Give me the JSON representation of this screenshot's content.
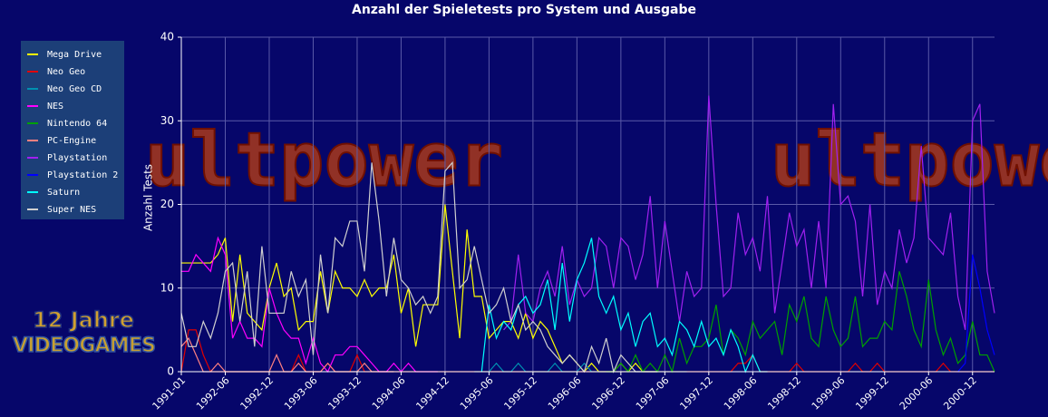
{
  "chart_data": {
    "type": "line",
    "title": "Anzahl der Spieletests pro System und Ausgabe",
    "y_label": "Anzahl Tests",
    "watermark": "ultpower",
    "logo": {
      "line1": "12 Jahre",
      "line2": "VIDEOGAMES"
    },
    "ylim": [
      0,
      40
    ],
    "yticks": [
      0,
      10,
      20,
      30,
      40
    ],
    "grid": true,
    "legend": "top-left",
    "categories": [
      "1991-01",
      null,
      null,
      null,
      null,
      null,
      "1992-06",
      null,
      null,
      null,
      null,
      null,
      "1992-12",
      null,
      null,
      null,
      null,
      null,
      "1993-06",
      null,
      null,
      null,
      null,
      null,
      "1993-12",
      null,
      null,
      null,
      null,
      null,
      "1994-06",
      null,
      null,
      null,
      null,
      null,
      "1994-12",
      null,
      null,
      null,
      null,
      null,
      "1995-06",
      null,
      null,
      null,
      null,
      null,
      "1995-12",
      null,
      null,
      null,
      null,
      null,
      "1996-06",
      null,
      null,
      null,
      null,
      null,
      "1996-12",
      null,
      null,
      null,
      null,
      null,
      "1997-06",
      null,
      null,
      null,
      null,
      null,
      "1997-12",
      null,
      null,
      null,
      null,
      null,
      "1998-06",
      null,
      null,
      null,
      null,
      null,
      "1998-12",
      null,
      null,
      null,
      null,
      null,
      "1999-06",
      null,
      null,
      null,
      null,
      null,
      "1999-12",
      null,
      null,
      null,
      null,
      null,
      "2000-06",
      null,
      null,
      null,
      null,
      null,
      "2000-12",
      null,
      null,
      null
    ],
    "series": [
      {
        "name": "Mega Drive",
        "color": "#ffff00",
        "values": [
          13,
          13,
          13,
          13,
          13,
          14,
          16,
          6,
          14,
          7,
          6,
          5,
          10,
          13,
          9,
          10,
          5,
          6,
          6,
          12,
          7,
          12,
          10,
          10,
          9,
          11,
          9,
          10,
          10,
          14,
          7,
          10,
          3,
          8,
          8,
          8,
          20,
          12,
          4,
          17,
          9,
          9,
          4,
          5,
          6,
          6,
          4,
          7,
          4,
          6,
          5,
          3,
          1,
          2,
          1,
          0,
          1,
          0,
          0,
          0,
          1,
          0,
          1,
          0,
          0,
          0,
          null,
          null,
          null,
          null,
          null,
          null,
          null,
          null,
          null,
          null,
          null,
          null,
          null,
          null,
          null,
          null,
          null,
          null,
          null,
          null,
          null,
          null,
          null,
          null,
          null,
          null,
          null,
          null,
          null,
          null,
          null,
          null,
          null,
          null,
          null,
          null,
          null,
          null,
          null,
          null,
          null,
          null,
          null,
          null,
          null,
          null
        ]
      },
      {
        "name": "Neo Geo",
        "color": "#e00000",
        "values": [
          0,
          5,
          5,
          2,
          0,
          0,
          0,
          0,
          0,
          0,
          0,
          0,
          0,
          0,
          0,
          0,
          2,
          0,
          0,
          0,
          1,
          0,
          0,
          0,
          2,
          0,
          0,
          0,
          0,
          0,
          0,
          0,
          0,
          0,
          0,
          0,
          0,
          0,
          0,
          0,
          0,
          0,
          0,
          0,
          0,
          0,
          0,
          0,
          0,
          0,
          0,
          0,
          0,
          0,
          0,
          0,
          0,
          0,
          0,
          0,
          0,
          0,
          0,
          0,
          0,
          0,
          0,
          0,
          0,
          0,
          0,
          0,
          0,
          0,
          0,
          0,
          1,
          1,
          2,
          0,
          0,
          0,
          0,
          0,
          1,
          0,
          0,
          0,
          0,
          0,
          0,
          0,
          1,
          0,
          0,
          1,
          0,
          0,
          0,
          0,
          0,
          0,
          0,
          0,
          1,
          0,
          0,
          0,
          0,
          0,
          0,
          0
        ]
      },
      {
        "name": "Neo Geo CD",
        "color": "#0090b0",
        "values": [
          null,
          null,
          null,
          null,
          null,
          null,
          null,
          null,
          null,
          null,
          null,
          null,
          null,
          null,
          null,
          null,
          null,
          null,
          null,
          null,
          null,
          null,
          null,
          null,
          null,
          null,
          null,
          null,
          null,
          null,
          null,
          null,
          null,
          null,
          null,
          null,
          null,
          null,
          null,
          null,
          0,
          0,
          0,
          1,
          0,
          0,
          1,
          0,
          0,
          0,
          0,
          1,
          0,
          0,
          0,
          1,
          0,
          0,
          0,
          0,
          0,
          0,
          0,
          0,
          0,
          0,
          0,
          0,
          0,
          0,
          null,
          null,
          null,
          null,
          null,
          null,
          null,
          null,
          null,
          null,
          null,
          null,
          null,
          null,
          null,
          null,
          null,
          null,
          null,
          null,
          null,
          null,
          null,
          null,
          null,
          null,
          null,
          null,
          null,
          null,
          null,
          null,
          null,
          null,
          null,
          null,
          null,
          null,
          null,
          null,
          null,
          null
        ]
      },
      {
        "name": "NES",
        "color": "#ff00ff",
        "values": [
          12,
          12,
          14,
          13,
          12,
          16,
          14,
          4,
          6,
          4,
          4,
          3,
          10,
          7,
          5,
          4,
          4,
          1,
          4,
          1,
          0,
          2,
          2,
          3,
          3,
          2,
          1,
          0,
          0,
          1,
          0,
          1,
          0,
          0,
          0,
          0,
          null,
          null,
          null,
          null,
          null,
          null,
          null,
          null,
          null,
          null,
          null,
          null,
          null,
          null,
          null,
          null,
          null,
          null,
          null,
          null,
          null,
          null,
          null,
          null,
          null,
          null,
          null,
          null,
          null,
          null,
          null,
          null,
          null,
          null,
          null,
          null,
          null,
          null,
          null,
          null,
          null,
          null,
          null,
          null,
          null,
          null,
          null,
          null,
          null,
          null,
          null,
          null,
          null,
          null,
          null,
          null,
          null,
          null,
          null,
          null,
          null,
          null,
          null,
          null,
          null,
          null,
          null,
          null,
          null,
          null,
          null,
          null,
          null,
          null,
          null,
          null
        ]
      },
      {
        "name": "Nintendo 64",
        "color": "#00a000",
        "values": [
          null,
          null,
          null,
          null,
          null,
          null,
          null,
          null,
          null,
          null,
          null,
          null,
          null,
          null,
          null,
          null,
          null,
          null,
          null,
          null,
          null,
          null,
          null,
          null,
          null,
          null,
          null,
          null,
          null,
          null,
          null,
          null,
          null,
          null,
          null,
          null,
          null,
          null,
          null,
          null,
          null,
          null,
          null,
          null,
          null,
          null,
          null,
          null,
          null,
          null,
          null,
          null,
          null,
          null,
          null,
          null,
          null,
          null,
          0,
          0,
          1,
          0,
          2,
          0,
          1,
          0,
          2,
          0,
          4,
          1,
          3,
          3,
          4,
          8,
          2,
          5,
          4,
          2,
          6,
          4,
          5,
          6,
          2,
          8,
          6,
          9,
          4,
          3,
          9,
          5,
          3,
          4,
          9,
          3,
          4,
          4,
          6,
          5,
          12,
          9,
          5,
          3,
          11,
          5,
          2,
          4,
          1,
          2,
          6,
          2,
          2,
          0
        ]
      },
      {
        "name": "PC-Engine",
        "color": "#ff8080",
        "values": [
          3,
          4,
          2,
          0,
          0,
          1,
          0,
          0,
          0,
          0,
          0,
          0,
          0,
          2,
          0,
          0,
          1,
          0,
          0,
          0,
          1,
          0,
          0,
          0,
          0,
          1,
          0,
          0,
          0,
          0,
          null,
          null,
          null,
          null,
          null,
          null,
          null,
          null,
          null,
          null,
          null,
          null,
          null,
          null,
          null,
          null,
          null,
          null,
          null,
          null,
          null,
          null,
          null,
          null,
          null,
          null,
          null,
          null,
          null,
          null,
          null,
          null,
          null,
          null,
          null,
          null,
          null,
          null,
          null,
          null,
          null,
          null,
          null,
          null,
          null,
          null,
          null,
          null,
          null,
          null,
          null,
          null,
          null,
          null,
          null,
          null,
          null,
          null,
          null,
          null,
          null,
          null,
          null,
          null,
          null,
          null,
          null,
          null,
          null,
          null,
          null,
          null,
          null,
          null,
          null,
          null,
          null,
          null,
          null,
          null,
          null,
          null
        ]
      },
      {
        "name": "Playstation",
        "color": "#a020f0",
        "values": [
          null,
          null,
          null,
          null,
          null,
          null,
          null,
          null,
          null,
          null,
          null,
          null,
          null,
          null,
          null,
          null,
          null,
          null,
          null,
          null,
          null,
          null,
          null,
          null,
          null,
          null,
          null,
          null,
          null,
          null,
          null,
          null,
          null,
          null,
          null,
          null,
          null,
          null,
          null,
          null,
          null,
          null,
          null,
          null,
          5,
          6,
          14,
          7,
          6,
          10,
          12,
          9,
          15,
          8,
          11,
          9,
          10,
          16,
          15,
          10,
          16,
          15,
          11,
          14,
          21,
          10,
          18,
          12,
          6,
          12,
          9,
          10,
          33,
          20,
          9,
          10,
          19,
          14,
          16,
          12,
          21,
          7,
          13,
          19,
          15,
          17,
          10,
          18,
          10,
          32,
          20,
          21,
          18,
          9,
          20,
          8,
          12,
          10,
          17,
          13,
          16,
          27,
          16,
          15,
          14,
          19,
          9,
          5,
          30,
          32,
          12,
          7
        ]
      },
      {
        "name": "Playstation 2",
        "color": "#0000ff",
        "values": [
          null,
          null,
          null,
          null,
          null,
          null,
          null,
          null,
          null,
          null,
          null,
          null,
          null,
          null,
          null,
          null,
          null,
          null,
          null,
          null,
          null,
          null,
          null,
          null,
          null,
          null,
          null,
          null,
          null,
          null,
          null,
          null,
          null,
          null,
          null,
          null,
          null,
          null,
          null,
          null,
          null,
          null,
          null,
          null,
          null,
          null,
          null,
          null,
          null,
          null,
          null,
          null,
          null,
          null,
          null,
          null,
          null,
          null,
          null,
          null,
          null,
          null,
          null,
          null,
          null,
          null,
          null,
          null,
          null,
          null,
          null,
          null,
          null,
          null,
          null,
          null,
          null,
          null,
          null,
          null,
          null,
          null,
          null,
          null,
          null,
          null,
          null,
          null,
          null,
          null,
          null,
          null,
          null,
          null,
          null,
          null,
          null,
          null,
          null,
          null,
          null,
          null,
          null,
          null,
          null,
          null,
          0,
          1,
          14,
          10,
          5,
          2
        ]
      },
      {
        "name": "Saturn",
        "color": "#00ffff",
        "values": [
          null,
          null,
          null,
          null,
          null,
          null,
          null,
          null,
          null,
          null,
          null,
          null,
          null,
          null,
          null,
          null,
          null,
          null,
          null,
          null,
          null,
          null,
          null,
          null,
          null,
          null,
          null,
          null,
          null,
          null,
          null,
          null,
          null,
          null,
          null,
          null,
          null,
          null,
          null,
          null,
          null,
          0,
          8,
          4,
          6,
          5,
          8,
          9,
          7,
          8,
          11,
          5,
          13,
          6,
          11,
          13,
          16,
          9,
          7,
          9,
          5,
          7,
          3,
          6,
          7,
          3,
          4,
          2,
          6,
          5,
          3,
          6,
          3,
          4,
          2,
          5,
          3,
          0,
          2,
          0,
          0,
          null,
          null,
          null,
          null,
          null,
          null,
          null,
          null,
          null,
          null,
          null,
          null,
          null,
          null,
          null,
          null,
          null,
          null,
          null,
          null,
          null,
          null,
          null,
          null,
          null,
          null,
          null,
          null,
          null,
          null,
          null
        ]
      },
      {
        "name": "Super NES",
        "color": "#d0d0d0",
        "values": [
          7,
          3,
          3,
          6,
          4,
          7,
          12,
          13,
          6,
          12,
          3,
          15,
          7,
          7,
          7,
          12,
          9,
          11,
          2,
          14,
          7,
          16,
          15,
          18,
          18,
          12,
          25,
          18,
          9,
          16,
          11,
          10,
          8,
          9,
          7,
          9,
          24,
          25,
          10,
          11,
          15,
          11,
          7,
          8,
          10,
          6,
          8,
          5,
          6,
          5,
          3,
          2,
          1,
          2,
          1,
          0,
          3,
          1,
          4,
          0,
          2,
          1,
          0,
          0,
          0,
          0,
          null,
          null,
          null,
          null,
          null,
          null,
          null,
          null,
          null,
          null,
          null,
          null,
          null,
          null,
          null,
          null,
          null,
          null,
          null,
          null,
          null,
          null,
          null,
          null,
          null,
          null,
          null,
          null,
          null,
          null,
          null,
          null,
          null,
          null,
          null,
          null,
          null,
          null,
          null,
          null,
          null,
          null,
          null,
          null,
          null,
          null
        ]
      }
    ]
  }
}
